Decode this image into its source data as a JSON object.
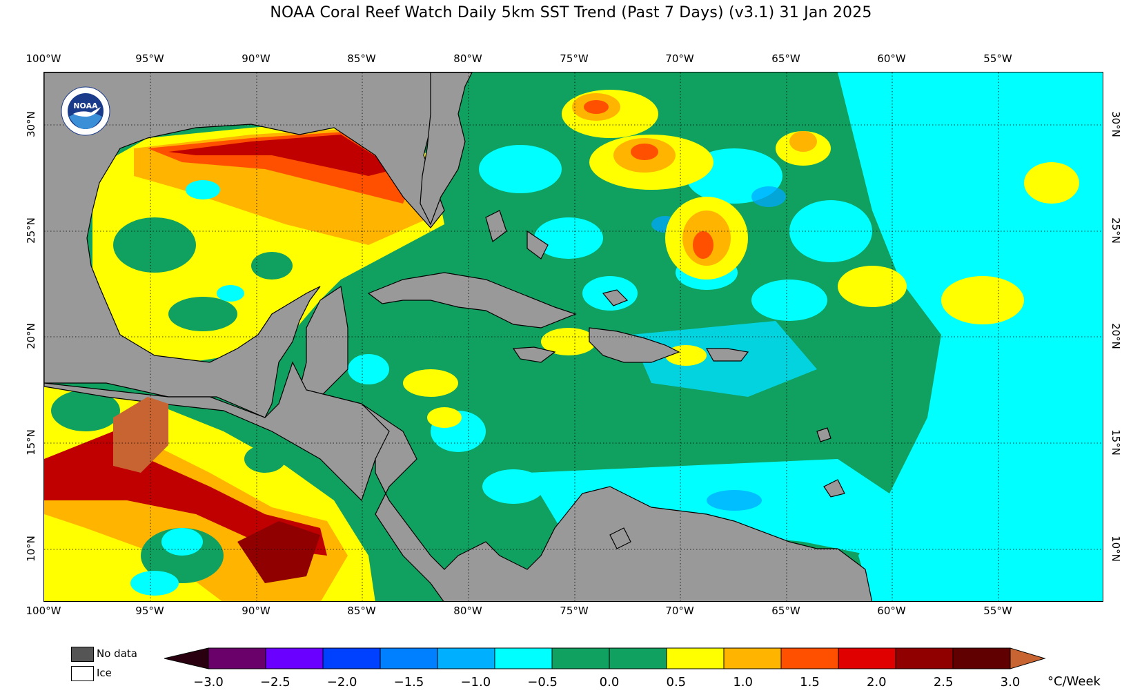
{
  "title": "NOAA Coral Reef Watch Daily 5km SST Trend (Past 7 Days)  (v3.1)   31 Jan 2025",
  "map": {
    "lon_labels": [
      "100°W",
      "95°W",
      "90°W",
      "85°W",
      "80°W",
      "75°W",
      "70°W",
      "65°W",
      "60°W",
      "55°W"
    ],
    "lat_labels": [
      "30°N",
      "25°N",
      "20°N",
      "15°N",
      "10°N"
    ],
    "extent": {
      "lon_min": -100,
      "lon_max": -50,
      "lat_min": 8,
      "lat_max": 33
    },
    "gridlines": "dotted",
    "colors": {
      "land": "#999999",
      "no_data": "#555555",
      "ice": "#ffffff"
    }
  },
  "logo": {
    "name": "NOAA",
    "ring_text": "NATIONAL OCEANIC AND ATMOSPHERIC ADMINISTRATION · U.S. DEPARTMENT OF COMMERCE"
  },
  "legend": {
    "items": [
      {
        "label": "No data",
        "color": "#555555"
      },
      {
        "label": "Ice",
        "color": "#ffffff"
      }
    ]
  },
  "colorbar": {
    "unit": "°C/Week",
    "tick_labels": [
      "−3.0",
      "−2.5",
      "−2.0",
      "−1.5",
      "−1.0",
      "−0.5",
      "0.0",
      "0.5",
      "1.0",
      "1.5",
      "2.0",
      "2.5",
      "3.0"
    ],
    "colors": [
      "#6a006a",
      "#6a00ff",
      "#0040ff",
      "#0080ff",
      "#00b0ff",
      "#00ffff",
      "#10a060",
      "#10a060",
      "#ffff00",
      "#ffb400",
      "#ff5000",
      "#e00000",
      "#900000",
      "#600000"
    ],
    "under_color": "#2a0010",
    "over_color": "#c86432"
  }
}
